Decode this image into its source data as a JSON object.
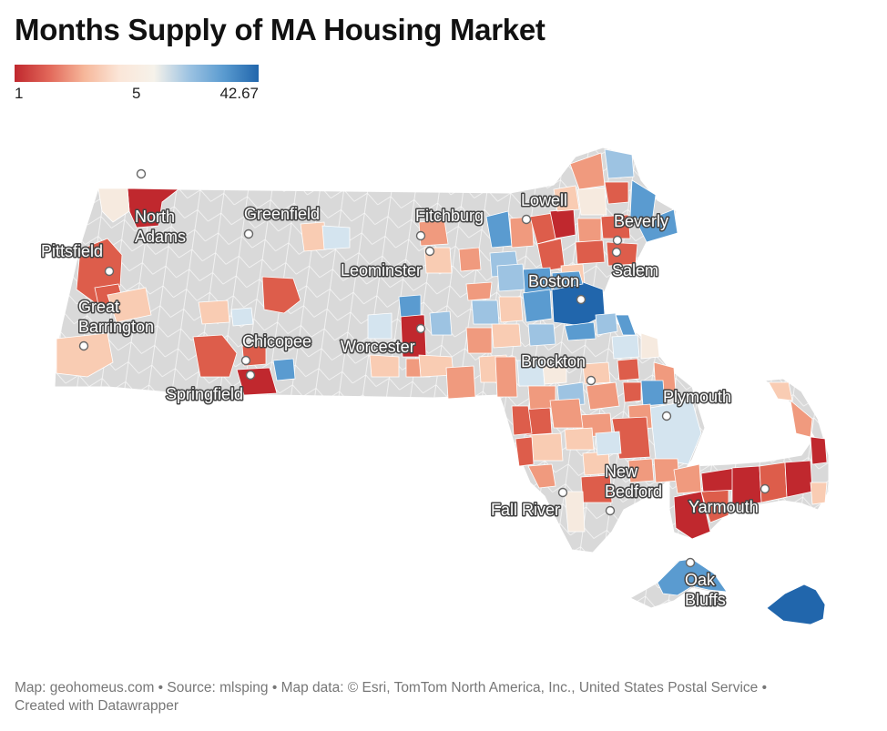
{
  "title": "Months Supply of MA Housing Market",
  "legend": {
    "min": "1",
    "mid": "5",
    "max": "42.67",
    "colors": [
      "#c0282e",
      "#e2685a",
      "#f6b79a",
      "#fbe6d8",
      "#f6f2ea",
      "#9dc3e2",
      "#5a9bd0",
      "#2166ac"
    ]
  },
  "colors": {
    "no_data": "#d9d9d9",
    "deep_red": "#c0282e",
    "red": "#dd5d4b",
    "salmon": "#f09a7e",
    "peach": "#f9ccb3",
    "cream": "#f6eadf",
    "pale_blue": "#d4e4ef",
    "light_blue": "#9dc3e2",
    "mid_blue": "#5a9bd0",
    "dark_blue": "#2166ac"
  },
  "cities": [
    {
      "name": "North\nAdams"
    },
    {
      "name": "Greenfield"
    },
    {
      "name": "Fitchburg"
    },
    {
      "name": "Lowell"
    },
    {
      "name": "Beverly"
    },
    {
      "name": "Pittsfield"
    },
    {
      "name": "Leominster"
    },
    {
      "name": "Salem"
    },
    {
      "name": "Great\nBarrington"
    },
    {
      "name": "Boston"
    },
    {
      "name": "Chicopee"
    },
    {
      "name": "Worcester"
    },
    {
      "name": "Springfield"
    },
    {
      "name": "Brockton"
    },
    {
      "name": "Plymouth"
    },
    {
      "name": "New\nBedford"
    },
    {
      "name": "Fall River"
    },
    {
      "name": "Yarmouth"
    },
    {
      "name": "Oak\nBluffs"
    }
  ],
  "footer": {
    "line1": "Map: geohomeus.com • Source: mlsping • Map data: © Esri, TomTom North America, Inc., United States Postal Service  •",
    "line2": "Created with Datawrapper"
  }
}
